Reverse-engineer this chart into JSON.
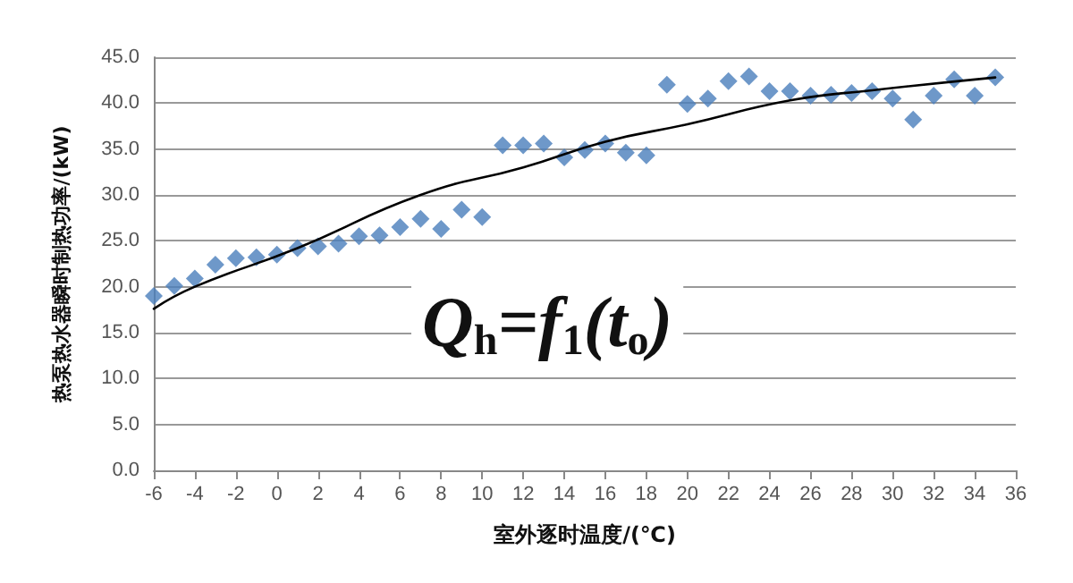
{
  "chart_data": {
    "type": "scatter",
    "xlabel": "室外逐时温度/(℃)",
    "ylabel": "热泵热水器瞬时制热功率/(kW)",
    "annotations": [
      "Q$_{h}$=f$_{1}$(t$_{o}$)"
    ],
    "xlim": [
      -6,
      36
    ],
    "xticks": [
      -6,
      -4,
      -2,
      0,
      2,
      4,
      6,
      8,
      10,
      12,
      14,
      16,
      18,
      20,
      22,
      24,
      26,
      28,
      30,
      32,
      34,
      36
    ],
    "ylim": [
      0,
      45
    ],
    "yticks": [
      {
        "value": 0,
        "label": "0.0"
      },
      {
        "value": 5,
        "label": "5.0"
      },
      {
        "value": 10,
        "label": "10.0"
      },
      {
        "value": 15,
        "label": "15.0"
      },
      {
        "value": 20,
        "label": "20.0"
      },
      {
        "value": 25,
        "label": "25.0"
      },
      {
        "value": 30,
        "label": "30.0"
      },
      {
        "value": 35,
        "label": "35.0"
      },
      {
        "value": 40,
        "label": "40.0"
      },
      {
        "value": 45,
        "label": "45.0"
      }
    ],
    "grid": "y",
    "marker": "diamond",
    "series": [
      {
        "color": "#4a7ebb",
        "x": [
          -6,
          -5,
          -4,
          -3,
          -2,
          -1,
          0,
          1,
          2,
          3,
          4,
          5,
          6,
          7,
          8,
          9,
          10,
          11,
          12,
          13,
          14,
          15,
          16,
          17,
          18,
          19,
          20,
          21,
          22,
          23,
          24,
          25,
          26,
          27,
          28,
          29,
          30,
          31,
          32,
          33,
          34,
          35
        ],
        "values": [
          19.0,
          20.1,
          20.9,
          22.4,
          23.1,
          23.2,
          23.5,
          24.2,
          24.4,
          24.7,
          25.5,
          25.6,
          26.5,
          27.4,
          26.3,
          28.4,
          27.6,
          35.4,
          35.4,
          35.6,
          34.1,
          34.9,
          35.6,
          34.6,
          34.3,
          42.0,
          39.9,
          40.5,
          42.4,
          42.9,
          41.3,
          41.3,
          40.8,
          40.9,
          41.1,
          41.3,
          40.5,
          38.2,
          40.8,
          42.6,
          40.8,
          42.8
        ]
      },
      {
        "type": "line",
        "color": "#000000",
        "marker": "none",
        "line_style": "solid",
        "x": [
          -6,
          -4,
          1,
          7,
          12,
          16,
          20,
          25,
          29,
          35
        ],
        "values": [
          17.6,
          20.0,
          24.2,
          30.0,
          33.0,
          35.8,
          37.7,
          40.3,
          41.4,
          42.8
        ]
      }
    ]
  }
}
